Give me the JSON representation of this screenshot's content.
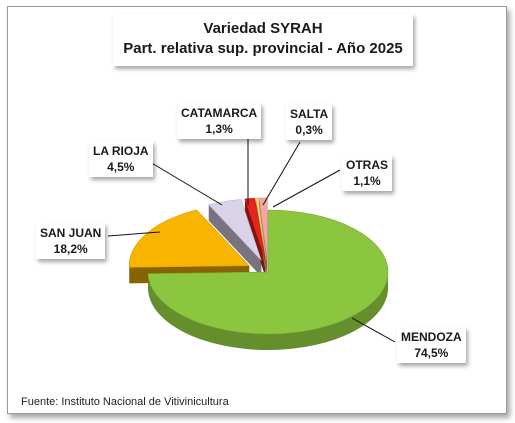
{
  "chart_data": {
    "type": "pie",
    "title": "Variedad SYRAH",
    "subtitle": "Part. relativa sup. provincial - Año 2025",
    "slices": [
      {
        "name": "MENDOZA",
        "value": 74.5,
        "label": "74,5%",
        "color": "#8cc63f",
        "exploded": false
      },
      {
        "name": "SAN JUAN",
        "value": 18.2,
        "label": "18,2%",
        "color": "#f7b500",
        "exploded": true
      },
      {
        "name": "LA RIOJA",
        "value": 4.5,
        "label": "4,5%",
        "color": "#d9d2e9",
        "exploded": true
      },
      {
        "name": "CATAMARCA",
        "value": 1.3,
        "label": "1,3%",
        "color": "#e8231b",
        "exploded": true
      },
      {
        "name": "SALTA",
        "value": 0.3,
        "label": "0,3%",
        "color": "#ffd966",
        "exploded": true
      },
      {
        "name": "OTRAS",
        "value": 1.1,
        "label": "1,1%",
        "color": "#f4a6a6",
        "exploded": true
      }
    ]
  },
  "footer": {
    "source": "Fuente: Instituto Nacional de Vitivinicultura"
  }
}
